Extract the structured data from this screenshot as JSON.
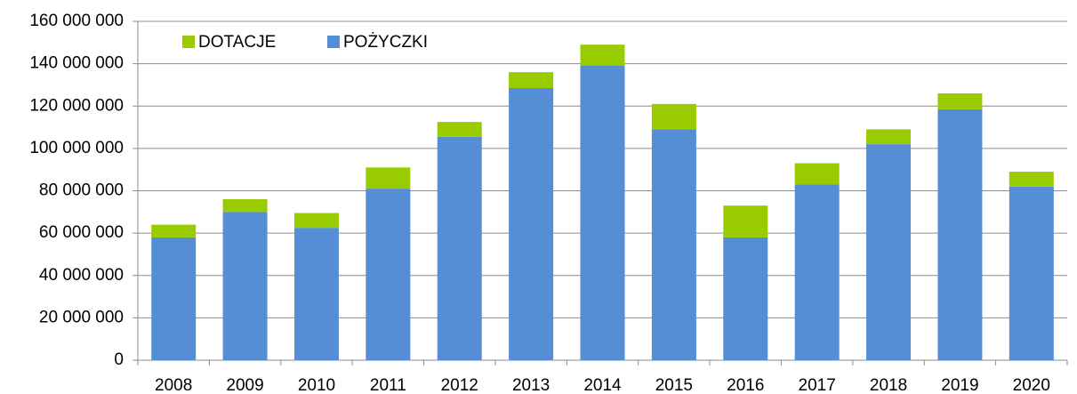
{
  "chart_data": {
    "type": "bar",
    "stacked": true,
    "categories": [
      "2008",
      "2009",
      "2010",
      "2011",
      "2012",
      "2013",
      "2014",
      "2015",
      "2016",
      "2017",
      "2018",
      "2019",
      "2020"
    ],
    "series": [
      {
        "name": "DOTACJE",
        "color": "#99cc00",
        "values": [
          6000000,
          6000000,
          7000000,
          10000000,
          7000000,
          7500000,
          10000000,
          12000000,
          15000000,
          10000000,
          7000000,
          7500000,
          7000000
        ]
      },
      {
        "name": "POŻYCZKI",
        "color": "#558ed5",
        "values": [
          58000000,
          70000000,
          62500000,
          81000000,
          105500000,
          128500000,
          139000000,
          109000000,
          58000000,
          83000000,
          102000000,
          118500000,
          82000000
        ]
      }
    ],
    "ylim": [
      0,
      160000000
    ],
    "yticks": [
      0,
      {
        "value": 20000000,
        "label": "20 000 000"
      },
      {
        "value": 40000000,
        "label": "40 000 000"
      },
      {
        "value": 60000000,
        "label": "60 000 000"
      },
      {
        "value": 80000000,
        "label": "80 000 000"
      },
      {
        "value": 100000000,
        "label": "100 000 000"
      },
      {
        "value": 120000000,
        "label": "120 000 000"
      },
      {
        "value": 140000000,
        "label": "140 000 000"
      },
      {
        "value": 160000000,
        "label": "160 000 000"
      }
    ],
    "grid": true,
    "legend": "top-left"
  }
}
